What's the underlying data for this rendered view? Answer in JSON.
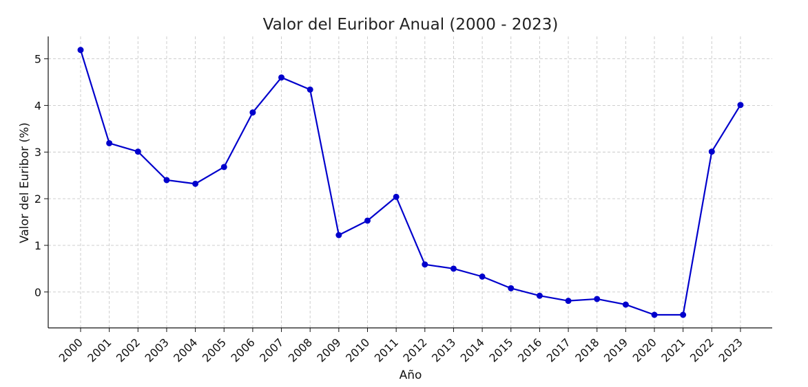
{
  "chart_data": {
    "type": "line",
    "title": "Valor del Euribor Anual (2000 - 2023)",
    "xlabel": "Año",
    "ylabel": "Valor del Euribor (%)",
    "x": [
      "2000",
      "2001",
      "2002",
      "2003",
      "2004",
      "2005",
      "2006",
      "2007",
      "2008",
      "2009",
      "2010",
      "2011",
      "2012",
      "2013",
      "2014",
      "2015",
      "2016",
      "2017",
      "2018",
      "2019",
      "2020",
      "2021",
      "2022",
      "2023"
    ],
    "series": [
      {
        "values": [
          5.19,
          3.19,
          3.01,
          2.4,
          2.32,
          2.68,
          3.85,
          4.6,
          4.34,
          1.22,
          1.53,
          2.04,
          0.59,
          0.5,
          0.33,
          0.08,
          -0.08,
          -0.19,
          -0.15,
          -0.27,
          -0.49,
          -0.49,
          3.01,
          4.01
        ],
        "color": "#0000cc"
      }
    ],
    "ylim": [
      -0.77,
      5.48
    ],
    "yticks": [
      "0",
      "1",
      "2",
      "3",
      "4",
      "5"
    ],
    "grid": true,
    "legend": "none"
  }
}
